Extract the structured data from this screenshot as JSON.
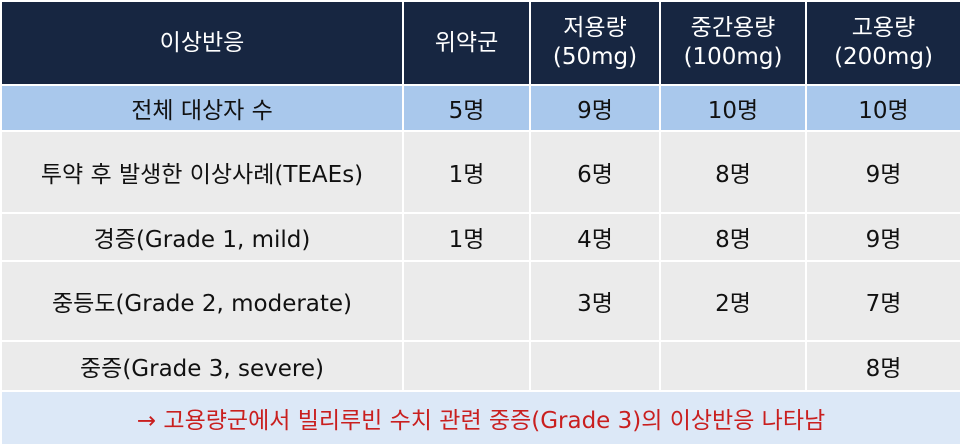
{
  "header": {
    "col0": "이상반응",
    "col1": "위약군",
    "col2": {
      "line1": "저용량",
      "line2": "(50mg)"
    },
    "col3": {
      "line1": "중간용량",
      "line2": "(100mg)"
    },
    "col4": {
      "line1": "고용량",
      "line2": "(200mg)"
    }
  },
  "total_row": {
    "label": "전체 대상자 수",
    "values": [
      "5명",
      "9명",
      "10명",
      "10명"
    ]
  },
  "rows": [
    {
      "label": "투약 후 발생한 이상사례(TEAEs)",
      "values": [
        "1명",
        "6명",
        "8명",
        "9명"
      ]
    },
    {
      "label": "경증(Grade 1, mild)",
      "values": [
        "1명",
        "4명",
        "8명",
        "9명"
      ]
    },
    {
      "label": "중등도(Grade 2, moderate)",
      "values": [
        "",
        "3명",
        "2명",
        "7명"
      ]
    },
    {
      "label": "중증(Grade 3, severe)",
      "values": [
        "",
        "",
        "",
        "8명"
      ]
    }
  ],
  "note": "→ 고용량군에서 빌리루빈 수치 관련 중증(Grade 3)의 이상반응 나타남",
  "colors": {
    "header_bg": "#172641",
    "total_bg": "#a9c8ec",
    "body_bg": "#ebebeb",
    "note_bg": "#dce8f7",
    "note_text": "#c91f1f"
  }
}
